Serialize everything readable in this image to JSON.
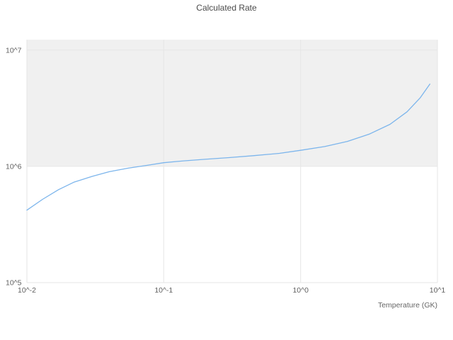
{
  "chart_data": {
    "type": "line",
    "title": "Calculated Rate",
    "xlabel": "Temperature (GK)",
    "ylabel": "",
    "xscale": "log",
    "yscale": "log",
    "xlim": [
      0.01,
      10
    ],
    "ylim": [
      100000,
      12300000
    ],
    "x_tick_labels": [
      "10^-2",
      "10^-1",
      "10^0",
      "10^1"
    ],
    "x_tick_values": [
      0.01,
      0.1,
      1,
      10
    ],
    "y_tick_labels": [
      "10^5",
      "10^6",
      "10^7"
    ],
    "y_tick_values": [
      100000,
      1000000,
      10000000
    ],
    "grid": true,
    "legend": "none",
    "band_color": "#f0f0f0",
    "grid_color": "#e6e6e6",
    "line_color": "#7cb5ec",
    "tick_label_color": "#606060",
    "series": [
      {
        "name": "calculated-rate",
        "x": [
          0.01,
          0.013,
          0.017,
          0.022,
          0.03,
          0.04,
          0.055,
          0.075,
          0.1,
          0.14,
          0.2,
          0.3,
          0.45,
          0.7,
          1.0,
          1.5,
          2.2,
          3.2,
          4.5,
          6.0,
          7.5,
          8.8
        ],
        "y": [
          420000,
          520000,
          630000,
          730000,
          820000,
          900000,
          965000,
          1020000,
          1075000,
          1115000,
          1150000,
          1190000,
          1235000,
          1295000,
          1375000,
          1480000,
          1640000,
          1900000,
          2300000,
          2950000,
          3900000,
          5100000
        ]
      }
    ]
  }
}
